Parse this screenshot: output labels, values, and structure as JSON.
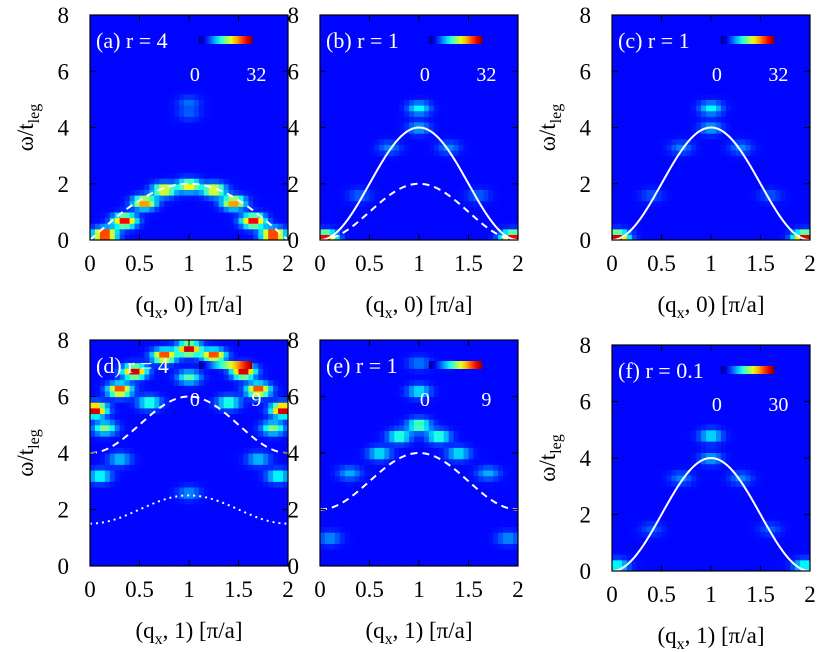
{
  "chart_data": [
    {
      "id": "a",
      "type": "heatmap",
      "label": "(a) r = 4",
      "colorbar": {
        "min": 0,
        "max": 32,
        "min_label": "0",
        "max_label": "32"
      },
      "xlabel": {
        "main": "(q",
        "sub": "x",
        "rest": ", 0) [π/a]"
      },
      "ylabel": {
        "main": "ω/t",
        "sub": "leg"
      },
      "xlim": [
        0,
        2
      ],
      "ylim": [
        0,
        8
      ],
      "xticks": [
        "0",
        "0.5",
        "1",
        "1.5",
        "2"
      ],
      "yticks": [
        "0",
        "2",
        "4",
        "6",
        "8"
      ],
      "curves": [
        {
          "style": "dashed",
          "formula": "2 sin(π q / 2)",
          "min": 0,
          "max": 2
        }
      ],
      "blobs": [
        {
          "q": 0.15,
          "w": 0.2,
          "i": 1.0
        },
        {
          "q": 0.35,
          "w": 0.7,
          "i": 0.9
        },
        {
          "q": 0.55,
          "w": 1.35,
          "i": 0.75
        },
        {
          "q": 0.75,
          "w": 1.8,
          "i": 0.65
        },
        {
          "q": 1.0,
          "w": 1.95,
          "i": 0.6
        },
        {
          "q": 1.25,
          "w": 1.8,
          "i": 0.65
        },
        {
          "q": 1.45,
          "w": 1.35,
          "i": 0.75
        },
        {
          "q": 1.65,
          "w": 0.7,
          "i": 0.9
        },
        {
          "q": 1.85,
          "w": 0.2,
          "i": 1.0
        },
        {
          "q": 1.0,
          "w": 4.9,
          "i": 0.12
        },
        {
          "q": 1.0,
          "w": 4.5,
          "i": 0.1
        }
      ]
    },
    {
      "id": "b",
      "type": "heatmap",
      "label": "(b) r = 1",
      "colorbar": {
        "min": 0,
        "max": 32,
        "min_label": "0",
        "max_label": "32"
      },
      "xlabel": {
        "main": "(q",
        "sub": "x",
        "rest": ", 0) [π/a]"
      },
      "ylabel": null,
      "xlim": [
        0,
        2
      ],
      "ylim": [
        0,
        8
      ],
      "xticks": [
        "0",
        "0.5",
        "1",
        "1.5",
        "2"
      ],
      "yticks": [
        "0",
        "2",
        "4",
        "6",
        "8"
      ],
      "curves": [
        {
          "style": "solid",
          "formula": "4 sin^2(π q / 2)",
          "min": 0,
          "max": 4
        },
        {
          "style": "dashed",
          "formula": "2 sin^2(π q / 2)",
          "min": 0,
          "max": 2
        }
      ],
      "blobs": [
        {
          "q": 0.05,
          "w": 0.1,
          "i": 0.9
        },
        {
          "q": 1.95,
          "w": 0.1,
          "i": 0.9
        },
        {
          "q": 1.0,
          "w": 4.7,
          "i": 0.3
        },
        {
          "q": 1.0,
          "w": 4.0,
          "i": 0.2
        },
        {
          "q": 0.7,
          "w": 3.3,
          "i": 0.15
        },
        {
          "q": 1.3,
          "w": 3.3,
          "i": 0.15
        },
        {
          "q": 0.4,
          "w": 1.6,
          "i": 0.12
        },
        {
          "q": 1.6,
          "w": 1.6,
          "i": 0.12
        }
      ]
    },
    {
      "id": "c",
      "type": "heatmap",
      "label": "(c) r = 1",
      "colorbar": {
        "min": 0,
        "max": 32,
        "min_label": "0",
        "max_label": "32"
      },
      "xlabel": {
        "main": "(q",
        "sub": "x",
        "rest": ", 0) [π/a]"
      },
      "ylabel": {
        "main": "ω/t",
        "sub": "leg"
      },
      "xlim": [
        0,
        2
      ],
      "ylim": [
        0,
        8
      ],
      "xticks": [
        "0",
        "0.5",
        "1",
        "1.5",
        "2"
      ],
      "yticks": [
        "0",
        "2",
        "4",
        "6",
        "8"
      ],
      "curves": [
        {
          "style": "solid",
          "formula": "4 sin^2(π q / 2)",
          "min": 0,
          "max": 4
        }
      ],
      "blobs": [
        {
          "q": 0.05,
          "w": 0.1,
          "i": 0.95
        },
        {
          "q": 1.95,
          "w": 0.1,
          "i": 0.95
        },
        {
          "q": 1.0,
          "w": 4.7,
          "i": 0.3
        },
        {
          "q": 1.0,
          "w": 4.0,
          "i": 0.2
        },
        {
          "q": 0.7,
          "w": 3.3,
          "i": 0.15
        },
        {
          "q": 1.3,
          "w": 3.3,
          "i": 0.15
        },
        {
          "q": 0.4,
          "w": 1.6,
          "i": 0.1
        },
        {
          "q": 1.6,
          "w": 1.6,
          "i": 0.1
        }
      ]
    },
    {
      "id": "d",
      "type": "heatmap",
      "label": "(d) r = 4",
      "colorbar": {
        "min": 0,
        "max": 9,
        "min_label": "0",
        "max_label": "9"
      },
      "xlabel": {
        "main": "(q",
        "sub": "x",
        "rest": ", 1) [π/a]"
      },
      "ylabel": {
        "main": "ω/t",
        "sub": "leg"
      },
      "xlim": [
        0,
        2
      ],
      "ylim": [
        0,
        8
      ],
      "xticks": [
        "0",
        "0.5",
        "1",
        "1.5",
        "2"
      ],
      "yticks": [
        "0",
        "2",
        "4",
        "6",
        "8"
      ],
      "curves": [
        {
          "style": "dashed",
          "formula": "5 + cos-band",
          "min": 4,
          "max": 6
        },
        {
          "style": "dotted",
          "formula": "2 + cos-band",
          "min": 1.5,
          "max": 2.5
        }
      ],
      "blobs": [
        {
          "q": 1.0,
          "w": 7.7,
          "i": 0.95
        },
        {
          "q": 0.75,
          "w": 7.45,
          "i": 0.85
        },
        {
          "q": 1.25,
          "w": 7.45,
          "i": 0.85
        },
        {
          "q": 0.45,
          "w": 6.9,
          "i": 0.95
        },
        {
          "q": 1.55,
          "w": 6.9,
          "i": 0.95
        },
        {
          "q": 0.3,
          "w": 6.25,
          "i": 0.85
        },
        {
          "q": 1.7,
          "w": 6.25,
          "i": 0.85
        },
        {
          "q": 0.05,
          "w": 5.55,
          "i": 1.0
        },
        {
          "q": 1.95,
          "w": 5.55,
          "i": 1.0
        },
        {
          "q": 0.15,
          "w": 4.9,
          "i": 0.45
        },
        {
          "q": 1.85,
          "w": 4.9,
          "i": 0.45
        },
        {
          "q": 0.6,
          "w": 5.8,
          "i": 0.4
        },
        {
          "q": 1.4,
          "w": 5.8,
          "i": 0.4
        },
        {
          "q": 1.0,
          "w": 6.7,
          "i": 0.4
        },
        {
          "q": 0.1,
          "w": 3.2,
          "i": 0.35
        },
        {
          "q": 1.9,
          "w": 3.2,
          "i": 0.35
        },
        {
          "q": 0.3,
          "w": 3.8,
          "i": 0.25
        },
        {
          "q": 1.7,
          "w": 3.8,
          "i": 0.25
        },
        {
          "q": 1.0,
          "w": 2.6,
          "i": 0.18
        }
      ]
    },
    {
      "id": "e",
      "type": "heatmap",
      "label": "(e) r = 1",
      "colorbar": {
        "min": 0,
        "max": 9,
        "min_label": "0",
        "max_label": "9"
      },
      "xlabel": {
        "main": "(q",
        "sub": "x",
        "rest": ", 1) [π/a]"
      },
      "ylabel": null,
      "xlim": [
        0,
        2
      ],
      "ylim": [
        0,
        8
      ],
      "xticks": [
        "0",
        "0.5",
        "1",
        "1.5",
        "2"
      ],
      "yticks": [
        "0",
        "2",
        "4",
        "6",
        "8"
      ],
      "curves": [
        {
          "style": "dashed",
          "formula": "3 - cos(π q)",
          "min": 2,
          "max": 4
        }
      ],
      "blobs": [
        {
          "q": 1.0,
          "w": 5.0,
          "i": 0.45
        },
        {
          "q": 0.8,
          "w": 4.6,
          "i": 0.4
        },
        {
          "q": 1.2,
          "w": 4.6,
          "i": 0.4
        },
        {
          "q": 1.0,
          "w": 6.2,
          "i": 0.3
        },
        {
          "q": 0.6,
          "w": 4.0,
          "i": 0.3
        },
        {
          "q": 1.4,
          "w": 4.0,
          "i": 0.3
        },
        {
          "q": 0.3,
          "w": 3.3,
          "i": 0.2
        },
        {
          "q": 1.7,
          "w": 3.3,
          "i": 0.2
        },
        {
          "q": 0.1,
          "w": 1.0,
          "i": 0.18
        },
        {
          "q": 1.9,
          "w": 1.0,
          "i": 0.18
        },
        {
          "q": 1.0,
          "w": 7.2,
          "i": 0.15
        }
      ]
    },
    {
      "id": "f",
      "type": "heatmap",
      "label": "(f) r = 0.1",
      "colorbar": {
        "min": 0,
        "max": 30,
        "min_label": "0",
        "max_label": "30"
      },
      "xlabel": {
        "main": "(q",
        "sub": "x",
        "rest": ", 1) [π/a]"
      },
      "ylabel": {
        "main": "ω/t",
        "sub": "leg"
      },
      "xlim": [
        0,
        2
      ],
      "ylim": [
        0,
        8
      ],
      "xticks": [
        "0",
        "0.5",
        "1",
        "1.5",
        "2"
      ],
      "yticks": [
        "0",
        "2",
        "4",
        "6",
        "8"
      ],
      "curves": [
        {
          "style": "solid",
          "formula": "4 sin^2(π q / 2)",
          "min": 0,
          "max": 4
        }
      ],
      "blobs": [
        {
          "q": 1.0,
          "w": 4.8,
          "i": 0.3
        },
        {
          "q": 1.0,
          "w": 4.0,
          "i": 0.2
        },
        {
          "q": 0.7,
          "w": 3.3,
          "i": 0.15
        },
        {
          "q": 1.3,
          "w": 3.3,
          "i": 0.15
        },
        {
          "q": 0.05,
          "w": 0.2,
          "i": 0.35
        },
        {
          "q": 1.95,
          "w": 0.2,
          "i": 0.35
        },
        {
          "q": 0.4,
          "w": 1.5,
          "i": 0.1
        },
        {
          "q": 1.6,
          "w": 1.5,
          "i": 0.1
        }
      ]
    }
  ]
}
